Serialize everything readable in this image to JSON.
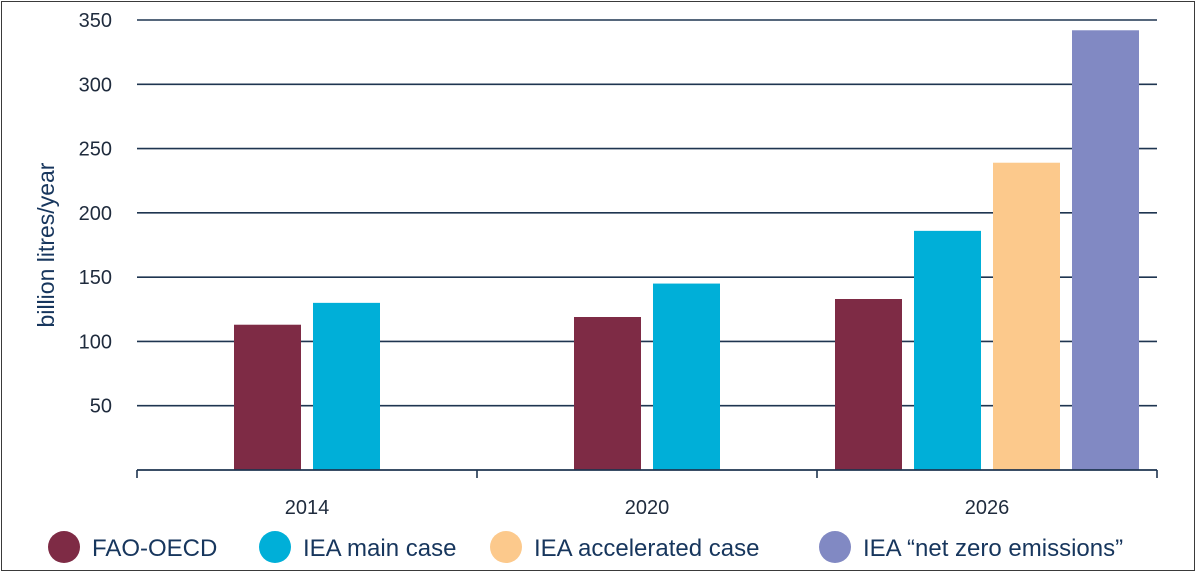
{
  "chart_data": {
    "type": "bar",
    "categories": [
      "2014",
      "2020",
      "2026"
    ],
    "series": [
      {
        "name": "FAO-OECD",
        "color": "#7e2b45",
        "values": [
          113,
          119,
          133
        ]
      },
      {
        "name": "IEA main case",
        "color": "#00afd8",
        "values": [
          130,
          145,
          186
        ]
      },
      {
        "name": "IEA accelerated case",
        "color": "#fcc98c",
        "values": [
          null,
          null,
          239
        ]
      },
      {
        "name": "IEA “net zero emissions”",
        "color": "#8189c3",
        "values": [
          null,
          null,
          342
        ]
      }
    ],
    "ylabel": "billion litres/year",
    "ylim": [
      0,
      350
    ],
    "yticks": [
      50,
      100,
      150,
      200,
      250,
      300,
      350
    ],
    "grid": true,
    "legend_position": "bottom"
  }
}
